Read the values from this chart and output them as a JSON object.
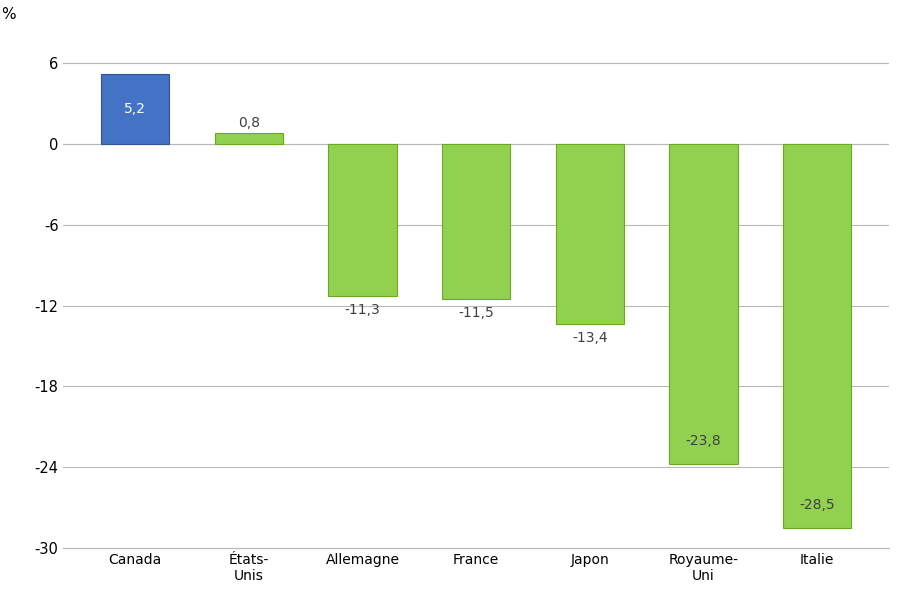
{
  "categories": [
    "Canada",
    "États-\nUnis",
    "Allemagne",
    "France",
    "Japon",
    "Royaume-\nUni",
    "Italie"
  ],
  "values": [
    5.2,
    0.8,
    -11.3,
    -11.5,
    -13.4,
    -23.8,
    -28.5
  ],
  "bar_colors": [
    "#4472c4",
    "#92d050",
    "#92d050",
    "#92d050",
    "#92d050",
    "#92d050",
    "#92d050"
  ],
  "bar_edge_colors": [
    "#2e5596",
    "#6aaa1e",
    "#6aaa1e",
    "#6aaa1e",
    "#6aaa1e",
    "#6aaa1e",
    "#6aaa1e"
  ],
  "labels": [
    "5,2",
    "0,8",
    "-11,3",
    "-11,5",
    "-13,4",
    "-23,8",
    "-28,5"
  ],
  "label_inside": [
    true,
    false,
    false,
    false,
    false,
    true,
    true
  ],
  "ylabel": "%",
  "ylim": [
    -33,
    8.5
  ],
  "yticks": [
    6,
    0,
    -6,
    -12,
    -18,
    -24,
    -30
  ],
  "ytick_labels": [
    "6",
    "0",
    "-6",
    "-12",
    "-18",
    "-24",
    "-30"
  ],
  "grid_color": "#b8b8b8",
  "background_color": "#ffffff",
  "label_color_white": "#ffffff",
  "label_color_dark": "#404040",
  "label_fontsize": 10,
  "ylabel_fontsize": 11,
  "tick_fontsize": 10.5,
  "bar_width": 0.6
}
